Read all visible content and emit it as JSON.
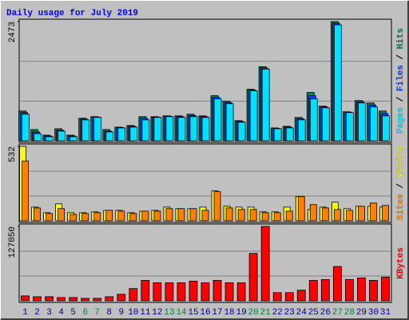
{
  "title": "Daily usage for July 2019",
  "chart_data": [
    {
      "type": "bar",
      "ylim": [
        0,
        2473
      ],
      "yticks": [
        2473
      ],
      "series": [
        {
          "name": "Hits",
          "color": "#00805c",
          "values": [
            618,
            234,
            117,
            250,
            117,
            468,
            501,
            234,
            284,
            317,
            501,
            501,
            518,
            518,
            551,
            518,
            936,
            819,
            418,
            1069,
            1537,
            267,
            301,
            485,
            1003,
            719,
            2473,
            602,
            835,
            785,
            618
          ]
        },
        {
          "name": "Files",
          "color": "#0040ff",
          "values": [
            585,
            184,
            100,
            217,
            100,
            451,
            493,
            200,
            275,
            300,
            468,
            493,
            510,
            501,
            526,
            501,
            902,
            794,
            401,
            1052,
            1512,
            259,
            284,
            460,
            936,
            702,
            2440,
            593,
            810,
            744,
            568
          ]
        },
        {
          "name": "Pages",
          "color": "#00e0ff",
          "values": [
            551,
            150,
            84,
            201,
            84,
            434,
            485,
            184,
            267,
            284,
            434,
            485,
            501,
            485,
            501,
            485,
            869,
            769,
            384,
            1036,
            1487,
            251,
            267,
            434,
            869,
            685,
            2406,
            585,
            785,
            702,
            518
          ]
        }
      ]
    },
    {
      "type": "bar",
      "ylim": [
        0,
        532
      ],
      "yticks": [
        532
      ],
      "series": [
        {
          "name": "Visits",
          "color": "#ffff00",
          "values": [
            532,
            98,
            58,
            121,
            58,
            58,
            64,
            75,
            75,
            58,
            69,
            75,
            98,
            87,
            87,
            98,
            214,
            104,
            98,
            98,
            64,
            64,
            98,
            173,
            81,
            98,
            133,
            87,
            104,
            104,
            98
          ]
        },
        {
          "name": "Sites",
          "color": "#ff8000",
          "values": [
            428,
            92,
            52,
            87,
            46,
            52,
            58,
            75,
            69,
            52,
            69,
            69,
            87,
            87,
            87,
            75,
            208,
            92,
            81,
            81,
            58,
            58,
            69,
            173,
            116,
            92,
            81,
            75,
            104,
            127,
            110
          ]
        }
      ]
    },
    {
      "type": "bar",
      "ylim": [
        0,
        127050
      ],
      "yticks": [
        127050
      ],
      "categories": [
        "1",
        "2",
        "3",
        "4",
        "5",
        "6",
        "7",
        "8",
        "9",
        "10",
        "11",
        "12",
        "13",
        "14",
        "15",
        "16",
        "17",
        "18",
        "19",
        "20",
        "21",
        "22",
        "23",
        "24",
        "25",
        "26",
        "27",
        "28",
        "29",
        "30",
        "31"
      ],
      "category_colors": [
        "#000080",
        "#000080",
        "#000080",
        "#000080",
        "#000080",
        "#008040",
        "#008040",
        "#000080",
        "#000080",
        "#000080",
        "#000080",
        "#000080",
        "#008040",
        "#008040",
        "#000080",
        "#000080",
        "#000080",
        "#000080",
        "#000080",
        "#008040",
        "#008040",
        "#000080",
        "#000080",
        "#000080",
        "#000080",
        "#000080",
        "#008040",
        "#008040",
        "#000080",
        "#000080",
        "#000080"
      ],
      "series": [
        {
          "name": "KBytes",
          "color": "#ff0000",
          "values": [
            8376,
            6980,
            6980,
            5584,
            5584,
            4188,
            4188,
            6980,
            11168,
            20940,
            34900,
            30712,
            30712,
            30712,
            33504,
            30712,
            34900,
            30712,
            30712,
            80968,
            127050,
            13960,
            13960,
            18148,
            34900,
            36296,
            58632,
            36296,
            39088,
            34900,
            40484
          ]
        }
      ]
    }
  ]
}
